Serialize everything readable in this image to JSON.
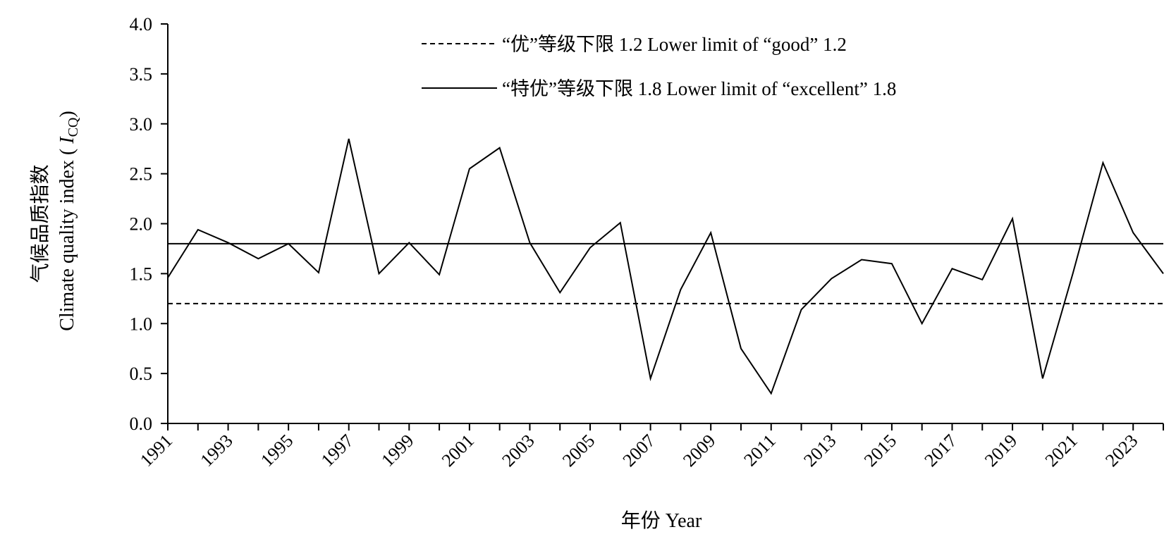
{
  "chart_data": {
    "type": "line",
    "xlabel": "年份 Year",
    "ylabel_lines": [
      "气候品质指数",
      "Climate quality index ( "
    ],
    "ylabel_symbol": "I",
    "ylabel_subscript": "CQ",
    "ylabel_close": ")",
    "ylim": [
      0,
      4
    ],
    "yticks": [
      "0.0",
      "0.5",
      "1.0",
      "1.5",
      "2.0",
      "2.5",
      "3.0",
      "3.5",
      "4.0"
    ],
    "xlim": [
      1991,
      2024
    ],
    "xticks": [
      "1991",
      "1993",
      "1995",
      "1997",
      "1999",
      "2001",
      "2003",
      "2005",
      "2007",
      "2009",
      "2011",
      "2013",
      "2015",
      "2017",
      "2019",
      "2021",
      "2023"
    ],
    "legend_position": "top",
    "grid": false,
    "series": [
      {
        "values_x": [
          1991,
          1992,
          1993,
          1994,
          1995,
          1996,
          1997,
          1998,
          1999,
          2000,
          2001,
          2002,
          2003,
          2004,
          2005,
          2006,
          2007,
          2008,
          2009,
          2010,
          2011,
          2012,
          2013,
          2014,
          2015,
          2016,
          2017,
          2018,
          2019,
          2020,
          2021,
          2022,
          2023,
          2024
        ],
        "values": [
          1.46,
          1.94,
          1.81,
          1.65,
          1.8,
          1.51,
          2.85,
          1.5,
          1.81,
          1.49,
          2.55,
          2.76,
          1.81,
          1.31,
          1.76,
          2.01,
          0.45,
          1.34,
          1.91,
          0.75,
          0.3,
          1.14,
          1.45,
          1.64,
          1.6,
          1.0,
          1.55,
          1.44,
          2.05,
          0.45,
          1.5,
          2.61,
          1.91,
          1.5
        ],
        "color": "#000000"
      }
    ],
    "reference_lines": [
      {
        "name": "“优”等级下限 1.2 Lower limit of “good” 1.2",
        "value": 1.2,
        "style": "dashed",
        "color": "#000000"
      },
      {
        "name": "“特优”等级下限 1.8 Lower limit of “excellent” 1.8",
        "value": 1.8,
        "style": "solid",
        "color": "#000000"
      }
    ]
  }
}
